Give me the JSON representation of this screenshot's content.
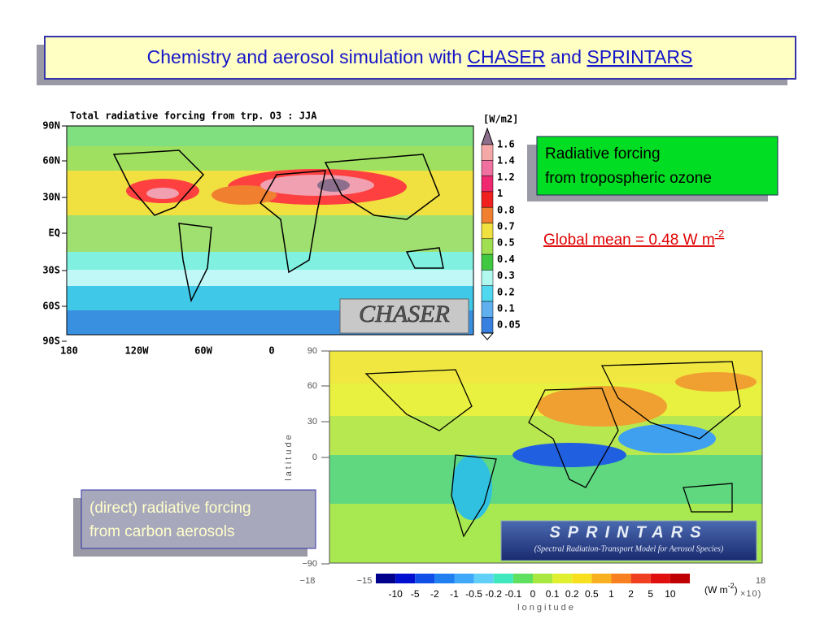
{
  "title": {
    "before": "Chemistry and aerosol simulation with ",
    "chaser": "CHASER",
    "middle": " and ",
    "sprintars": "SPRINTARS"
  },
  "ozone_map": {
    "title": "Total radiative forcing from trp. O3 : JJA",
    "lat_labels": [
      "90N",
      "60N",
      "30N",
      "EQ",
      "30S",
      "60S",
      "90S"
    ],
    "lon_labels": [
      "180",
      "120W",
      "60W",
      "0"
    ],
    "colorbar_unit": "[W/m2]",
    "colorbar_labels": [
      "1.6",
      "1.4",
      "1.2",
      "1",
      "0.8",
      "0.7",
      "0.5",
      "0.4",
      "0.3",
      "0.2",
      "0.1",
      "0.05"
    ],
    "logo": "CHASER"
  },
  "ozone_note": {
    "lines": [
      "Radiative forcing",
      "from tropospheric ozone"
    ]
  },
  "global_mean": {
    "text": "Global mean = 0.48 W m",
    "superscript": "-2"
  },
  "aerosol_map": {
    "lat_labels": [
      "90",
      "60",
      "30",
      "0",
      "−90"
    ],
    "lat_axis_label": "latitude",
    "lon_labels": [
      "−18",
      "−15",
      "18"
    ],
    "lon_axis_label": "longitude",
    "colorbar_labels": [
      "-10",
      "-5",
      "-2",
      "-1",
      "-0.5",
      "-0.2",
      "-0.1",
      "0",
      "0.1",
      "0.2",
      "0.5",
      "1",
      "2",
      "5",
      "10"
    ],
    "unit": "(W m",
    "unit_sup": "-2",
    "unit_end": ")",
    "scale": "×10)",
    "logo": {
      "name": "SPRINTARS",
      "subtitle": "(Spectral Radiation-Transport Model for Aerosol Species)"
    }
  },
  "aerosol_note": {
    "lines": [
      "(direct) radiative forcing",
      "from carbon aerosols"
    ]
  }
}
